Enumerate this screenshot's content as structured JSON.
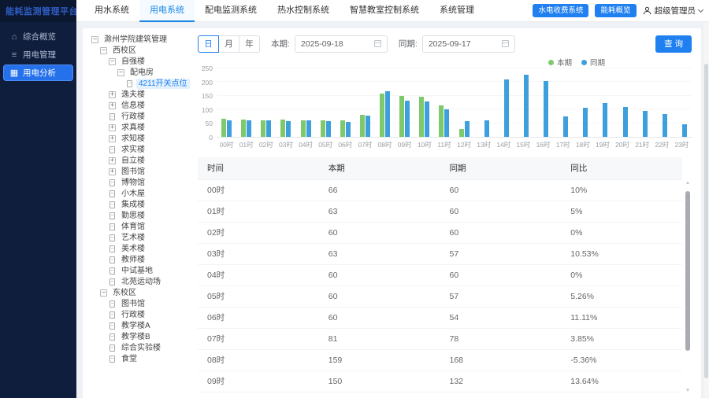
{
  "app": {
    "title": "能耗监测管理平台"
  },
  "header": {
    "tabs": [
      {
        "label": "用水系统",
        "active": false
      },
      {
        "label": "用电系统",
        "active": true
      },
      {
        "label": "配电监测系统",
        "active": false
      },
      {
        "label": "热水控制系统",
        "active": false
      },
      {
        "label": "智慧教室控制系统",
        "active": false
      },
      {
        "label": "系统管理",
        "active": false
      }
    ],
    "action_buttons": [
      {
        "label": "水电收费系统"
      },
      {
        "label": "能耗概览"
      }
    ],
    "user": {
      "name": "超级管理员"
    }
  },
  "sidebar": {
    "items": [
      {
        "label": "综合概览",
        "icon": "home-icon",
        "glyph": "⌂",
        "active": false
      },
      {
        "label": "用电管理",
        "icon": "list-icon",
        "glyph": "≡",
        "active": false
      },
      {
        "label": "用电分析",
        "icon": "grid-chart-icon",
        "glyph": "▦",
        "active": true
      }
    ]
  },
  "tree": {
    "nodes": [
      {
        "label": "滁州学院建筑管理",
        "level": 0,
        "icon": "collapse",
        "selected": false
      },
      {
        "label": "西校区",
        "level": 1,
        "icon": "collapse",
        "selected": false
      },
      {
        "label": "自强楼",
        "level": 2,
        "icon": "collapse",
        "selected": false
      },
      {
        "label": "配电房",
        "level": 3,
        "icon": "collapse",
        "selected": false
      },
      {
        "label": "4211开关点位",
        "level": 4,
        "icon": "doc",
        "selected": true
      },
      {
        "label": "逸夫楼",
        "level": 2,
        "icon": "expand",
        "selected": false
      },
      {
        "label": "信息楼",
        "level": 2,
        "icon": "expand",
        "selected": false
      },
      {
        "label": "行政楼",
        "level": 2,
        "icon": "doc",
        "selected": false
      },
      {
        "label": "求真楼",
        "level": 2,
        "icon": "expand",
        "selected": false
      },
      {
        "label": "求知楼",
        "level": 2,
        "icon": "expand",
        "selected": false
      },
      {
        "label": "求实楼",
        "level": 2,
        "icon": "doc",
        "selected": false
      },
      {
        "label": "自立楼",
        "level": 2,
        "icon": "expand",
        "selected": false
      },
      {
        "label": "图书馆",
        "level": 2,
        "icon": "expand",
        "selected": false
      },
      {
        "label": "博物馆",
        "level": 2,
        "icon": "doc",
        "selected": false
      },
      {
        "label": "小木屋",
        "level": 2,
        "icon": "doc",
        "selected": false
      },
      {
        "label": "集成楼",
        "level": 2,
        "icon": "doc",
        "selected": false
      },
      {
        "label": "勤思楼",
        "level": 2,
        "icon": "doc",
        "selected": false
      },
      {
        "label": "体育馆",
        "level": 2,
        "icon": "doc",
        "selected": false
      },
      {
        "label": "艺术楼",
        "level": 2,
        "icon": "doc",
        "selected": false
      },
      {
        "label": "美术楼",
        "level": 2,
        "icon": "doc",
        "selected": false
      },
      {
        "label": "教师楼",
        "level": 2,
        "icon": "doc",
        "selected": false
      },
      {
        "label": "中试基地",
        "level": 2,
        "icon": "doc",
        "selected": false
      },
      {
        "label": "北苑运动场",
        "level": 2,
        "icon": "doc",
        "selected": false
      },
      {
        "label": "东校区",
        "level": 1,
        "icon": "collapse",
        "selected": false
      },
      {
        "label": "图书馆",
        "level": 2,
        "icon": "doc",
        "selected": false
      },
      {
        "label": "行政楼",
        "level": 2,
        "icon": "doc",
        "selected": false
      },
      {
        "label": "教学楼A",
        "level": 2,
        "icon": "doc",
        "selected": false
      },
      {
        "label": "教学楼B",
        "level": 2,
        "icon": "doc",
        "selected": false
      },
      {
        "label": "综合实验楼",
        "level": 2,
        "icon": "doc",
        "selected": false
      },
      {
        "label": "食堂",
        "level": 2,
        "icon": "doc",
        "selected": false
      }
    ]
  },
  "controls": {
    "granularity": [
      {
        "label": "日",
        "active": true
      },
      {
        "label": "月",
        "active": false
      },
      {
        "label": "年",
        "active": false
      }
    ],
    "current_label": "本期:",
    "current_value": "2025-09-18",
    "compare_label": "同期:",
    "compare_value": "2025-09-17",
    "search_label": "查 询"
  },
  "chart_data": {
    "type": "bar",
    "title": "",
    "xlabel": "",
    "ylabel": "",
    "categories": [
      "00时",
      "01时",
      "02时",
      "03时",
      "04时",
      "05时",
      "06时",
      "07时",
      "08时",
      "09时",
      "10时",
      "11时",
      "12时",
      "13时",
      "14时",
      "15时",
      "16时",
      "17时",
      "18时",
      "19时",
      "20时",
      "21时",
      "22时",
      "23时"
    ],
    "series": [
      {
        "name": "本期",
        "color": "#7fc96d",
        "values": [
          66,
          63,
          60,
          63,
          60,
          60,
          60,
          81,
          159,
          150,
          148,
          115,
          30,
          0,
          0,
          0,
          0,
          0,
          0,
          0,
          0,
          0,
          0,
          0
        ]
      },
      {
        "name": "同期",
        "color": "#3da0dc",
        "values": [
          60,
          60,
          60,
          57,
          60,
          57,
          54,
          78,
          168,
          132,
          130,
          102,
          58,
          60,
          210,
          228,
          205,
          75,
          105,
          125,
          108,
          95,
          82,
          45
        ]
      }
    ],
    "ylim": [
      0,
      250
    ],
    "ytick_step": 50,
    "legend_position": "top-right",
    "grid": true
  },
  "table": {
    "headers": [
      "时间",
      "本期",
      "同期",
      "同比"
    ],
    "rows": [
      [
        "00时",
        "66",
        "60",
        "10%"
      ],
      [
        "01时",
        "63",
        "60",
        "5%"
      ],
      [
        "02时",
        "60",
        "60",
        "0%"
      ],
      [
        "03时",
        "63",
        "57",
        "10.53%"
      ],
      [
        "04时",
        "60",
        "60",
        "0%"
      ],
      [
        "05时",
        "60",
        "57",
        "5.26%"
      ],
      [
        "06时",
        "60",
        "54",
        "11.11%"
      ],
      [
        "07时",
        "81",
        "78",
        "3.85%"
      ],
      [
        "08时",
        "159",
        "168",
        "-5.36%"
      ],
      [
        "09时",
        "150",
        "132",
        "13.64%"
      ]
    ]
  },
  "colors": {
    "accent": "#2080f0",
    "bar_current": "#7fc96d",
    "bar_compare": "#3da0dc",
    "sidebar_bg": "#101e3d",
    "active_tab": "#1a86e8"
  }
}
